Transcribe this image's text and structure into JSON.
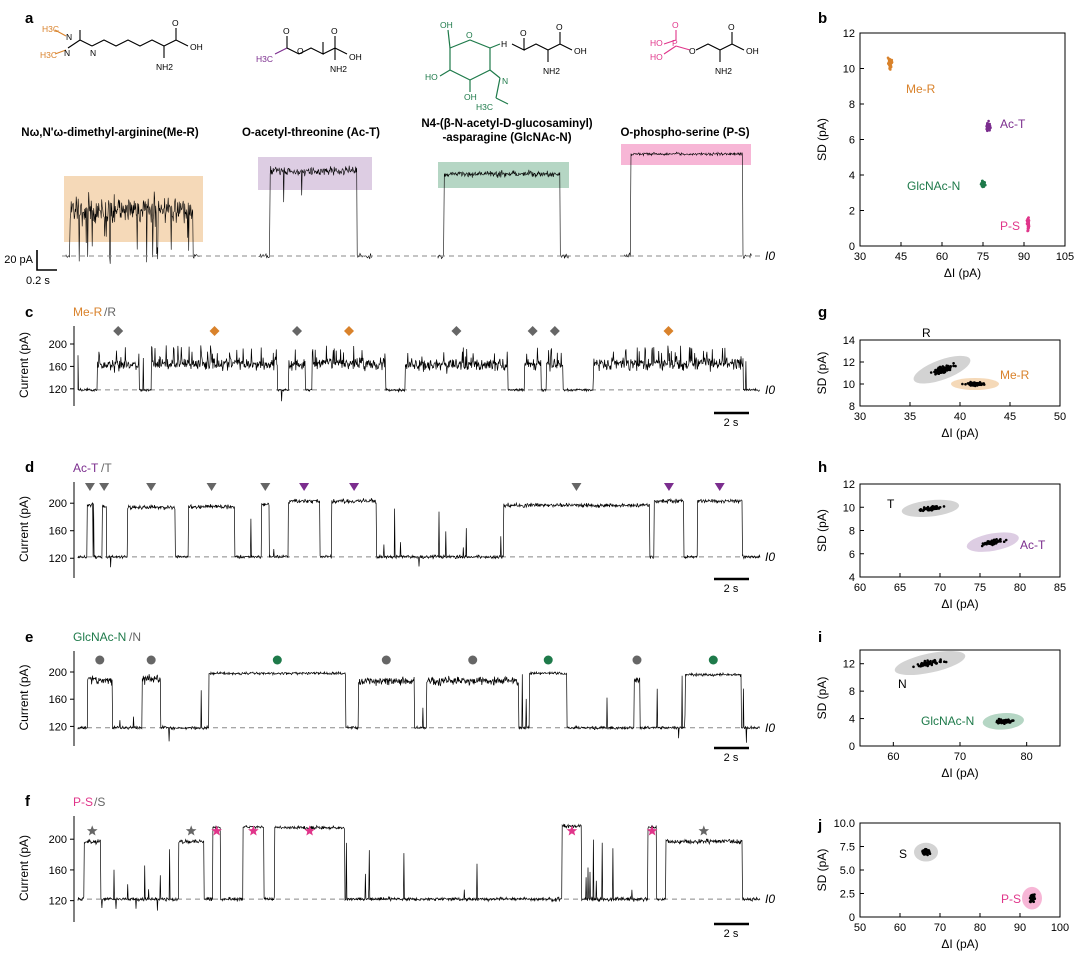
{
  "colors": {
    "me_r": "#d9822b",
    "me_r_fill": "#f5d9b8",
    "ac_t": "#7b2d8e",
    "ac_t_fill": "#ddcde3",
    "glcnac_n": "#1e7a4a",
    "glcnac_n_fill": "#b5d6c4",
    "p_s": "#e0358a",
    "p_s_fill": "#f7b6d6",
    "unmod": "#666666",
    "unmod_fill": "#d3d3d3",
    "trace": "#000000"
  },
  "panel_a": {
    "label": "a",
    "compounds": [
      {
        "name": "Nω,Nʹω-dimethyl-arginine(Me-R)",
        "key": "me_r"
      },
      {
        "name": "O-acetyl-threonine (Ac-T)",
        "key": "ac_t"
      },
      {
        "name_line1": "N4-(β-N-acetyl-D-glucosaminyl)",
        "name_line2": "-asparagine (GlcNAc-N)",
        "key": "glcnac_n"
      },
      {
        "name": "O-phospho-serine (P-S)",
        "key": "p_s"
      }
    ],
    "atoms": {
      "nh2": "NH2",
      "oh": "OH",
      "o": "O",
      "n": "N",
      "h3c": "H3C",
      "h": "H",
      "ho": "HO",
      "p": "P"
    },
    "scalebar_y": "20 pA",
    "scalebar_x": "0.2 s",
    "baseline_label": "I0"
  },
  "panel_b": {
    "label": "b",
    "xlabel": "ΔI (pA)",
    "ylabel": "SD (pA)"
  },
  "trace_panels": {
    "c": {
      "label": "c",
      "title_mod": "Me-R",
      "title_unmod": "/R"
    },
    "d": {
      "label": "d",
      "title_mod": "Ac-T",
      "title_unmod": "/T"
    },
    "e": {
      "label": "e",
      "title_mod": "GlcNAc-N",
      "title_unmod": "/N"
    },
    "f": {
      "label": "f",
      "title_mod": "P-S",
      "title_unmod": "/S"
    },
    "ylabel": "Current (pA)",
    "scalebar": "2 s",
    "baseline_label": "I0"
  },
  "scatter_panels": {
    "g": {
      "label": "g"
    },
    "h": {
      "label": "h"
    },
    "i": {
      "label": "i"
    },
    "j": {
      "label": "j"
    },
    "xlabel": "ΔI (pA)",
    "ylabel": "SD (pA)"
  },
  "chart_data": [
    {
      "id": "b",
      "type": "scatter",
      "title": "",
      "xlabel": "ΔI (pA)",
      "ylabel": "SD (pA)",
      "xlim": [
        30,
        105
      ],
      "ylim": [
        0,
        12
      ],
      "xticks": [
        30,
        45,
        60,
        75,
        90,
        105
      ],
      "yticks": [
        0,
        2,
        4,
        6,
        8,
        10,
        12
      ],
      "series": [
        {
          "name": "Me-R",
          "color_key": "me_r",
          "center": [
            41,
            10.3
          ],
          "spread": [
            0.7,
            0.35
          ]
        },
        {
          "name": "Ac-T",
          "color_key": "ac_t",
          "center": [
            77,
            6.7
          ],
          "spread": [
            0.8,
            0.25
          ]
        },
        {
          "name": "GlcNAc-N",
          "color_key": "glcnac_n",
          "center": [
            75,
            3.5
          ],
          "spread": [
            0.6,
            0.2
          ]
        },
        {
          "name": "P-S",
          "color_key": "p_s",
          "center": [
            91.5,
            1.3
          ],
          "spread": [
            0.4,
            0.35
          ]
        }
      ]
    },
    {
      "id": "c",
      "type": "line",
      "ylabel": "Current (pA)",
      "yticks": [
        120,
        160,
        200
      ],
      "ylim": [
        100,
        225
      ],
      "duration_s": 30,
      "baseline_pA": 118,
      "events": [
        {
          "start": 1.4,
          "end": 4.4,
          "level": 162,
          "noise": 11,
          "mark": "unmod"
        },
        {
          "start": 5.3,
          "end": 14.4,
          "level": 165,
          "noise": 11,
          "mark": "mod"
        },
        {
          "start": 15.2,
          "end": 16.4,
          "level": 164,
          "noise": 11,
          "mark": "unmod"
        },
        {
          "start": 16.9,
          "end": 22.2,
          "level": 165,
          "noise": 11,
          "mark": "mod"
        },
        {
          "start": 23.6,
          "end": 31.0,
          "level": 163,
          "noise": 11,
          "mark": "unmod"
        },
        {
          "start": 32.2,
          "end": 33.4,
          "level": 163,
          "noise": 11,
          "mark": "unmod"
        },
        {
          "start": 33.8,
          "end": 35.0,
          "level": 163,
          "noise": 11,
          "mark": "unmod"
        },
        {
          "start": 37.2,
          "end": 48.0,
          "level": 165,
          "noise": 11,
          "mark": "mod"
        }
      ],
      "marker": "diamond"
    },
    {
      "id": "d",
      "type": "line",
      "ylabel": "Current (pA)",
      "yticks": [
        120,
        160,
        200
      ],
      "ylim": [
        100,
        225
      ],
      "duration_s": 30,
      "baseline_pA": 122,
      "events": [
        {
          "start": 0.6,
          "end": 1.0,
          "level": 198,
          "noise": 3,
          "mark": "unmod"
        },
        {
          "start": 1.6,
          "end": 1.9,
          "level": 196,
          "noise": 3,
          "mark": "unmod"
        },
        {
          "start": 3.3,
          "end": 6.5,
          "level": 194,
          "noise": 3,
          "mark": "unmod"
        },
        {
          "start": 7.4,
          "end": 10.5,
          "level": 195,
          "noise": 3,
          "mark": "unmod"
        },
        {
          "start": 12.3,
          "end": 12.8,
          "level": 198,
          "noise": 3,
          "mark": "unmod"
        },
        {
          "start": 14.1,
          "end": 16.2,
          "level": 203,
          "noise": 3,
          "mark": "mod"
        },
        {
          "start": 17.0,
          "end": 20.0,
          "level": 203,
          "noise": 3,
          "mark": "mod"
        },
        {
          "start": 28.5,
          "end": 38.3,
          "level": 197,
          "noise": 3,
          "mark": "unmod"
        },
        {
          "start": 38.6,
          "end": 40.6,
          "level": 203,
          "noise": 3,
          "mark": "mod"
        },
        {
          "start": 41.5,
          "end": 44.5,
          "level": 203,
          "noise": 3,
          "mark": "mod"
        }
      ],
      "marker": "triangle"
    },
    {
      "id": "e",
      "type": "line",
      "ylabel": "Current (pA)",
      "yticks": [
        120,
        160,
        200
      ],
      "ylim": [
        100,
        225
      ],
      "duration_s": 30,
      "baseline_pA": 118,
      "events": [
        {
          "start": 0.6,
          "end": 2.2,
          "level": 188,
          "noise": 6,
          "mark": "unmod"
        },
        {
          "start": 4.1,
          "end": 5.3,
          "level": 190,
          "noise": 6,
          "mark": "unmod"
        },
        {
          "start": 8.4,
          "end": 17.2,
          "level": 198,
          "noise": 2,
          "mark": "mod"
        },
        {
          "start": 18.0,
          "end": 21.6,
          "level": 187,
          "noise": 6,
          "mark": "unmod"
        },
        {
          "start": 22.4,
          "end": 28.3,
          "level": 187,
          "noise": 6,
          "mark": "unmod"
        },
        {
          "start": 29.0,
          "end": 31.4,
          "level": 198,
          "noise": 2,
          "mark": "mod"
        },
        {
          "start": 35.7,
          "end": 36.1,
          "level": 188,
          "noise": 6,
          "mark": "unmod"
        },
        {
          "start": 39.0,
          "end": 42.6,
          "level": 196,
          "noise": 2,
          "mark": "mod"
        }
      ],
      "marker": "circle"
    },
    {
      "id": "f",
      "type": "line",
      "ylabel": "Current (pA)",
      "yticks": [
        120,
        160,
        200
      ],
      "ylim": [
        100,
        225
      ],
      "duration_s": 30,
      "baseline_pA": 122,
      "events": [
        {
          "start": 0.4,
          "end": 1.5,
          "level": 197,
          "noise": 3,
          "mark": "unmod"
        },
        {
          "start": 6.7,
          "end": 8.4,
          "level": 197,
          "noise": 3,
          "mark": "unmod"
        },
        {
          "start": 9.0,
          "end": 9.5,
          "level": 215,
          "noise": 2,
          "mark": "mod"
        },
        {
          "start": 11.0,
          "end": 12.4,
          "level": 216,
          "noise": 2,
          "mark": "mod"
        },
        {
          "start": 13.1,
          "end": 17.8,
          "level": 215,
          "noise": 2,
          "mark": "mod"
        },
        {
          "start": 32.3,
          "end": 33.6,
          "level": 217,
          "noise": 2,
          "mark": "mod"
        },
        {
          "start": 38.0,
          "end": 38.6,
          "level": 216,
          "noise": 2,
          "mark": "mod"
        },
        {
          "start": 39.2,
          "end": 44.3,
          "level": 197,
          "noise": 3,
          "mark": "unmod"
        }
      ],
      "marker": "star"
    },
    {
      "id": "g",
      "type": "scatter",
      "xlabel": "ΔI (pA)",
      "ylabel": "SD (pA)",
      "xlim": [
        30,
        50
      ],
      "ylim": [
        8,
        14
      ],
      "xticks": [
        30,
        35,
        40,
        45,
        50
      ],
      "yticks": [
        8,
        10,
        12,
        14
      ],
      "series": [
        {
          "name": "R",
          "color_key": "unmod",
          "center": [
            38.2,
            11.3
          ],
          "spread": [
            1.1,
            0.35
          ],
          "angle": -20,
          "ellipse": [
            3.0,
            0.9
          ]
        },
        {
          "name": "Me-R",
          "color_key": "me_r",
          "center": [
            41.5,
            10.0
          ],
          "spread": [
            0.9,
            0.15
          ],
          "angle": 0,
          "ellipse": [
            2.4,
            0.55
          ]
        }
      ]
    },
    {
      "id": "h",
      "type": "scatter",
      "xlabel": "ΔI (pA)",
      "ylabel": "SD (pA)",
      "xlim": [
        60,
        85
      ],
      "ylim": [
        4,
        12
      ],
      "xticks": [
        60,
        65,
        70,
        75,
        80,
        85
      ],
      "yticks": [
        4,
        6,
        8,
        10,
        12
      ],
      "series": [
        {
          "name": "T",
          "color_key": "unmod",
          "center": [
            68.8,
            9.9
          ],
          "spread": [
            1.3,
            0.15
          ],
          "angle": -6,
          "ellipse": [
            3.6,
            0.7
          ]
        },
        {
          "name": "Ac-T",
          "color_key": "ac_t",
          "center": [
            76.6,
            7.0
          ],
          "spread": [
            1.3,
            0.2
          ],
          "angle": -10,
          "ellipse": [
            3.3,
            0.75
          ]
        }
      ]
    },
    {
      "id": "i",
      "type": "scatter",
      "xlabel": "ΔI (pA)",
      "ylabel": "SD (pA)",
      "xlim": [
        55,
        85
      ],
      "ylim": [
        0,
        14
      ],
      "xticks": [
        60,
        70,
        80
      ],
      "yticks": [
        0,
        4,
        8,
        12
      ],
      "series": [
        {
          "name": "N",
          "color_key": "unmod",
          "center": [
            65.5,
            12.1
          ],
          "spread": [
            2.0,
            0.35
          ],
          "angle": -12,
          "ellipse": [
            5.4,
            1.4
          ]
        },
        {
          "name": "GlcNAc-N",
          "color_key": "glcnac_n",
          "center": [
            76.5,
            3.6
          ],
          "spread": [
            1.2,
            0.25
          ],
          "angle": -4,
          "ellipse": [
            3.1,
            1.2
          ]
        }
      ]
    },
    {
      "id": "j",
      "type": "scatter",
      "xlabel": "ΔI (pA)",
      "ylabel": "SD (pA)",
      "xlim": [
        50,
        100
      ],
      "ylim": [
        0,
        10
      ],
      "xticks": [
        50,
        60,
        70,
        80,
        90,
        100
      ],
      "yticks": [
        0,
        2.5,
        5,
        7.5,
        10
      ],
      "yticklabels": [
        "0",
        "2.5",
        "5.0",
        "7.5",
        "10.0"
      ],
      "series": [
        {
          "name": "S",
          "color_key": "unmod",
          "center": [
            66.5,
            6.9
          ],
          "spread": [
            0.9,
            0.3
          ],
          "angle": 0,
          "ellipse": [
            3.0,
            1.0
          ]
        },
        {
          "name": "P-S",
          "color_key": "p_s",
          "center": [
            93,
            2.0
          ],
          "spread": [
            0.6,
            0.4
          ],
          "angle": 0,
          "ellipse": [
            2.5,
            1.2
          ]
        }
      ]
    }
  ]
}
